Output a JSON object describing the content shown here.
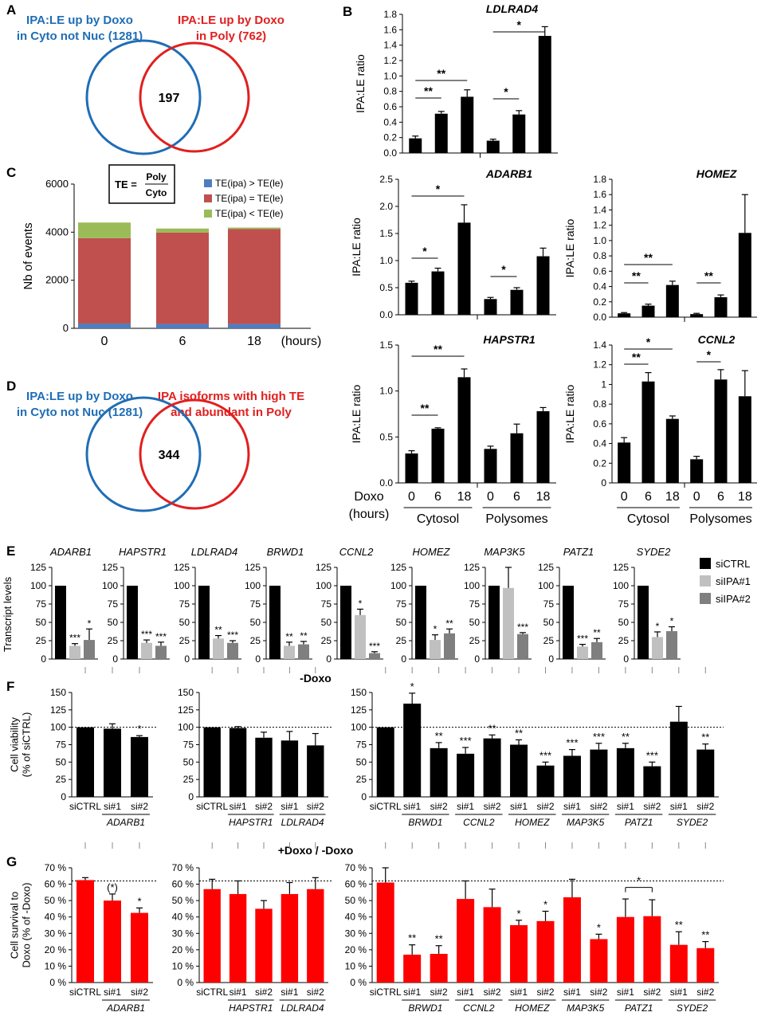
{
  "colors": {
    "blue": "#1f6db5",
    "red": "#e0201f",
    "stack_blue": "#4f7dc0",
    "stack_red": "#c0504d",
    "stack_green": "#9bbb59",
    "black": "#000000",
    "light_gray": "#c0c0c0",
    "dark_gray": "#7f7f7f",
    "bar_red": "#ff0000"
  },
  "panels": {
    "A": {
      "letter": "A",
      "left": "IPA:LE up by Doxo\nin Cyto not Nuc (1281)",
      "right": "IPA:LE up by Doxo\nin Poly (762)",
      "overlap": "197"
    },
    "D": {
      "letter": "D",
      "left": "IPA:LE up by Doxo\nin Cyto not Nuc (1281)",
      "right": "IPA isoforms with high TE\nand abundant in Poly",
      "overlap": "344"
    },
    "B": {
      "letter": "B",
      "ylabel": "IPA:LE ratio",
      "x_title": "Doxo\n(hours)",
      "group_labels": [
        "Cytosol",
        "Polysomes"
      ]
    },
    "C": {
      "letter": "C",
      "ylabel": "Nb of events",
      "unit": "(hours)",
      "formula_lhs": "TE =",
      "formula_num": "Poly",
      "formula_den": "Cyto"
    },
    "E": {
      "letter": "E",
      "ylabel": "Transcript levels"
    },
    "F": {
      "letter": "F",
      "ylabel": "Cell viability\n(% of siCTRL)",
      "condition": "-Doxo"
    },
    "G": {
      "letter": "G",
      "ylabel": "Cell survival to\nDoxo (% of -Doxo)",
      "condition": "+Doxo / -Doxo"
    }
  },
  "chart_data": [
    {
      "panel": "B",
      "type": "bar",
      "title": "LDLRAD4",
      "ylabel": "IPA:LE ratio",
      "categories": [
        "0",
        "6",
        "18",
        "0",
        "6",
        "18"
      ],
      "groups": [
        "Cytosol",
        "Polysomes"
      ],
      "values": [
        0.19,
        0.51,
        0.73,
        0.16,
        0.5,
        1.52
      ],
      "errors": [
        0.03,
        0.03,
        0.09,
        0.02,
        0.05,
        0.12
      ],
      "ylim": [
        0,
        1.8
      ],
      "yticks": [
        "0.0",
        "0.2",
        "0.4",
        "0.6",
        "0.8",
        "1.0",
        "1.2",
        "1.4",
        "1.6",
        "1.8"
      ],
      "significance": [
        "**",
        "**",
        "*",
        "*"
      ]
    },
    {
      "panel": "B",
      "type": "bar",
      "title": "ADARB1",
      "ylabel": "IPA:LE ratio",
      "categories": [
        "0",
        "6",
        "18",
        "0",
        "6",
        "18"
      ],
      "groups": [
        "Cytosol",
        "Polysomes"
      ],
      "values": [
        0.59,
        0.8,
        1.7,
        0.29,
        0.46,
        1.08
      ],
      "errors": [
        0.03,
        0.06,
        0.33,
        0.03,
        0.04,
        0.15
      ],
      "ylim": [
        0,
        2.5
      ],
      "yticks": [
        "0.0",
        "0.5",
        "1.0",
        "1.5",
        "2.0",
        "2.5"
      ],
      "significance": [
        "*",
        "*",
        "*"
      ]
    },
    {
      "panel": "B",
      "type": "bar",
      "title": "HOMEZ",
      "ylabel": "IPA:LE ratio",
      "categories": [
        "0",
        "6",
        "18",
        "0",
        "6",
        "18"
      ],
      "groups": [
        "Cytosol",
        "Polysomes"
      ],
      "values": [
        0.05,
        0.15,
        0.42,
        0.04,
        0.26,
        1.1
      ],
      "errors": [
        0.01,
        0.02,
        0.05,
        0.01,
        0.03,
        0.5
      ],
      "ylim": [
        0,
        1.8
      ],
      "yticks": [
        "0.0",
        "0.2",
        "0.4",
        "0.6",
        "0.8",
        "1.0",
        "1.2",
        "1.4",
        "1.6",
        "1.8"
      ],
      "significance": [
        "**",
        "**",
        "**"
      ]
    },
    {
      "panel": "B",
      "type": "bar",
      "title": "HAPSTR1",
      "ylabel": "IPA:LE ratio",
      "categories": [
        "0",
        "6",
        "18",
        "0",
        "6",
        "18"
      ],
      "groups": [
        "Cytosol",
        "Polysomes"
      ],
      "values": [
        0.32,
        0.59,
        1.15,
        0.37,
        0.54,
        0.78
      ],
      "errors": [
        0.03,
        0.01,
        0.09,
        0.03,
        0.1,
        0.04
      ],
      "ylim": [
        0,
        1.5
      ],
      "yticks": [
        "0.0",
        "0.5",
        "1.0",
        "1.5"
      ],
      "significance": [
        "**",
        "**"
      ]
    },
    {
      "panel": "B",
      "type": "bar",
      "title": "CCNL2",
      "ylabel": "IPA:LE ratio",
      "categories": [
        "0",
        "6",
        "18",
        "0",
        "6",
        "18"
      ],
      "groups": [
        "Cytosol",
        "Polysomes"
      ],
      "values": [
        0.41,
        1.03,
        0.65,
        0.24,
        1.05,
        0.88
      ],
      "errors": [
        0.05,
        0.09,
        0.03,
        0.03,
        0.1,
        0.26
      ],
      "ylim": [
        0,
        1.4
      ],
      "yticks": [
        "0",
        "0.2",
        "0.4",
        "0.6",
        "0.8",
        "1",
        "1.2",
        "1.4"
      ],
      "significance": [
        "**",
        "*",
        "*"
      ]
    },
    {
      "panel": "C",
      "type": "bar",
      "stacked": true,
      "ylabel": "Nb of events",
      "categories": [
        "0",
        "6",
        "18"
      ],
      "series": [
        {
          "name": "TE(ipa) > TE(le)",
          "color": "#4f7dc0",
          "values": [
            200,
            180,
            180
          ]
        },
        {
          "name": "TE(ipa) = TE(le)",
          "color": "#c0504d",
          "values": [
            3550,
            3800,
            3950
          ]
        },
        {
          "name": "TE(ipa) < TE(le)",
          "color": "#9bbb59",
          "values": [
            650,
            170,
            60
          ]
        }
      ],
      "ylim": [
        0,
        6000
      ],
      "yticks": [
        "0",
        "2000",
        "4000",
        "6000"
      ]
    },
    {
      "panel": "E",
      "type": "bar",
      "ylabel": "Transcript levels",
      "yticks": [
        "0",
        "25",
        "50",
        "75",
        "100",
        "125"
      ],
      "ylim": [
        0,
        125
      ],
      "legend": [
        "siCTRL",
        "siIPA#1",
        "siIPA#2"
      ],
      "genes": [
        {
          "gene": "ADARB1",
          "values": [
            100,
            18,
            26
          ],
          "errors": [
            0,
            3,
            15
          ],
          "sig": [
            "",
            "***",
            "*"
          ]
        },
        {
          "gene": "HAPSTR1",
          "values": [
            100,
            22,
            18
          ],
          "errors": [
            0,
            4,
            5
          ],
          "sig": [
            "",
            "***",
            "***"
          ]
        },
        {
          "gene": "LDLRAD4",
          "values": [
            100,
            28,
            22
          ],
          "errors": [
            0,
            4,
            3
          ],
          "sig": [
            "",
            "**",
            "***"
          ]
        },
        {
          "gene": "BRWD1",
          "values": [
            100,
            18,
            20
          ],
          "errors": [
            0,
            5,
            4
          ],
          "sig": [
            "",
            "**",
            "**"
          ]
        },
        {
          "gene": "CCNL2",
          "values": [
            100,
            60,
            8
          ],
          "errors": [
            0,
            8,
            2
          ],
          "sig": [
            "",
            "*",
            "***"
          ]
        },
        {
          "gene": "HOMEZ",
          "values": [
            100,
            26,
            35
          ],
          "errors": [
            0,
            7,
            6
          ],
          "sig": [
            "",
            "*",
            "**"
          ]
        },
        {
          "gene": "MAP3K5",
          "values": [
            100,
            97,
            34
          ],
          "errors": [
            0,
            28,
            2
          ],
          "sig": [
            "",
            "",
            "***"
          ]
        },
        {
          "gene": "PATZ1",
          "values": [
            100,
            17,
            23
          ],
          "errors": [
            0,
            3,
            5
          ],
          "sig": [
            "",
            "***",
            "**"
          ]
        },
        {
          "gene": "SYDE2",
          "values": [
            100,
            30,
            38
          ],
          "errors": [
            0,
            7,
            6
          ],
          "sig": [
            "",
            "*",
            "*"
          ]
        }
      ]
    },
    {
      "panel": "F",
      "type": "bar",
      "ylabel": "Cell viability\n(% of siCTRL)",
      "title": "-Doxo",
      "yticks": [
        "0",
        "25",
        "50",
        "75",
        "100",
        "125",
        "150"
      ],
      "ylim": [
        0,
        150
      ],
      "reference_line": 100,
      "subplots": [
        {
          "labels": [
            "siCTRL",
            "si#1",
            "si#2"
          ],
          "values": [
            100,
            98,
            86
          ],
          "errors": [
            0,
            7,
            2
          ],
          "sig": [
            "",
            "",
            "*"
          ],
          "gene_groups": [
            {
              "name": "ADARB1",
              "from": 1,
              "to": 2
            }
          ]
        },
        {
          "labels": [
            "siCTRL",
            "si#1",
            "si#2",
            "si#1",
            "si#2"
          ],
          "values": [
            100,
            99,
            85,
            81,
            74
          ],
          "errors": [
            0,
            2,
            8,
            13,
            17
          ],
          "sig": [
            "",
            "",
            "",
            "",
            ""
          ],
          "gene_groups": [
            {
              "name": "HAPSTR1",
              "from": 1,
              "to": 2
            },
            {
              "name": "LDLRAD4",
              "from": 3,
              "to": 4
            }
          ]
        },
        {
          "labels": [
            "siCTRL",
            "si#1",
            "si#2",
            "si#1",
            "si#2",
            "si#1",
            "si#2",
            "si#1",
            "si#2",
            "si#1",
            "si#2",
            "si#1",
            "si#2"
          ],
          "values": [
            100,
            134,
            70,
            62,
            84,
            75,
            45,
            59,
            68,
            70,
            44,
            108,
            68
          ],
          "errors": [
            0,
            15,
            8,
            9,
            5,
            7,
            5,
            9,
            9,
            7,
            6,
            22,
            8
          ],
          "sig": [
            "",
            "*",
            "**",
            "***",
            "**",
            "**",
            "***",
            "***",
            "***",
            "**",
            "***",
            "",
            "**"
          ],
          "gene_groups": [
            {
              "name": "BRWD1",
              "from": 1,
              "to": 2
            },
            {
              "name": "CCNL2",
              "from": 3,
              "to": 4
            },
            {
              "name": "HOMEZ",
              "from": 5,
              "to": 6
            },
            {
              "name": "MAP3K5",
              "from": 7,
              "to": 8
            },
            {
              "name": "PATZ1",
              "from": 9,
              "to": 10
            },
            {
              "name": "SYDE2",
              "from": 11,
              "to": 12
            }
          ]
        }
      ]
    },
    {
      "panel": "G",
      "type": "bar",
      "ylabel": "Cell survival to\nDoxo (% of -Doxo)",
      "title": "+Doxo / -Doxo",
      "yticks": [
        "0 %",
        "10 %",
        "20 %",
        "30 %",
        "40 %",
        "50 %",
        "60 %",
        "70 %"
      ],
      "ylim": [
        0,
        70
      ],
      "reference_line": 62,
      "subplots": [
        {
          "labels": [
            "siCTRL",
            "si#1",
            "si#2"
          ],
          "values": [
            62.5,
            50,
            42.5
          ],
          "errors": [
            1.5,
            4,
            3
          ],
          "sig": [
            "",
            "(*)",
            "*"
          ],
          "gene_groups": [
            {
              "name": "ADARB1",
              "from": 1,
              "to": 2
            }
          ]
        },
        {
          "labels": [
            "siCTRL",
            "si#1",
            "si#2",
            "si#1",
            "si#2"
          ],
          "values": [
            57,
            54,
            45,
            54,
            57
          ],
          "errors": [
            6,
            8,
            5,
            7,
            7
          ],
          "sig": [
            "",
            "",
            "",
            "",
            ""
          ],
          "gene_groups": [
            {
              "name": "HAPSTR1",
              "from": 1,
              "to": 2
            },
            {
              "name": "LDLRAD4",
              "from": 3,
              "to": 4
            }
          ]
        },
        {
          "labels": [
            "siCTRL",
            "si#1",
            "si#2",
            "si#1",
            "si#2",
            "si#1",
            "si#2",
            "si#1",
            "si#2",
            "si#1",
            "si#2",
            "si#1",
            "si#2"
          ],
          "values": [
            61,
            17,
            17.5,
            51,
            46,
            35,
            37.5,
            52,
            26.5,
            40,
            40.5,
            23,
            21
          ],
          "errors": [
            9,
            6,
            5,
            11,
            11,
            3,
            6,
            11,
            3,
            11,
            10,
            8,
            4
          ],
          "sig": [
            "",
            "**",
            "**",
            "",
            "",
            "*",
            "*",
            "",
            "*",
            "",
            "",
            "**",
            "**"
          ],
          "bracket": {
            "from": 9,
            "to": 10,
            "label": "*"
          },
          "gene_groups": [
            {
              "name": "BRWD1",
              "from": 1,
              "to": 2
            },
            {
              "name": "CCNL2",
              "from": 3,
              "to": 4
            },
            {
              "name": "HOMEZ",
              "from": 5,
              "to": 6
            },
            {
              "name": "MAP3K5",
              "from": 7,
              "to": 8
            },
            {
              "name": "PATZ1",
              "from": 9,
              "to": 10
            },
            {
              "name": "SYDE2",
              "from": 11,
              "to": 12
            }
          ]
        }
      ]
    }
  ]
}
